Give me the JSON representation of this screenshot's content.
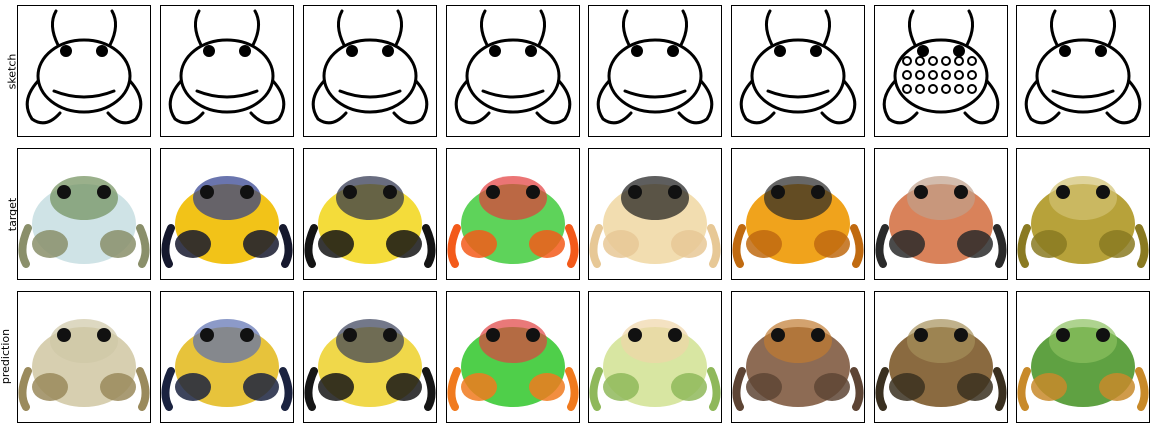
{
  "rows": [
    {
      "label": "sketch"
    },
    {
      "label": "target"
    },
    {
      "label": "prediction"
    }
  ],
  "panels": [
    {
      "col": 1,
      "target_colors": [
        "#cfe3e6",
        "#8a8f6a",
        "#6f8f5a"
      ],
      "prediction_colors": [
        "#d7cfb0",
        "#9a8a5c",
        "#cfc7a6"
      ],
      "sketch": "sitting-front"
    },
    {
      "col": 2,
      "target_colors": [
        "#f2c318",
        "#16192e",
        "#2b3a8c"
      ],
      "prediction_colors": [
        "#e7c33b",
        "#1b2340",
        "#5b6fb0"
      ],
      "sketch": "side-walking"
    },
    {
      "col": 3,
      "target_colors": [
        "#f4dc3a",
        "#141414",
        "#2a2f4a"
      ],
      "prediction_colors": [
        "#f0d84a",
        "#161616",
        "#383e58"
      ],
      "sketch": "side-closeup"
    },
    {
      "col": 4,
      "target_colors": [
        "#5ed35a",
        "#f35a1a",
        "#e23a3a"
      ],
      "prediction_colors": [
        "#4fcf4a",
        "#f07a1e",
        "#e04040"
      ],
      "sketch": "treefrog-top"
    },
    {
      "col": 5,
      "target_colors": [
        "#f2ddb0",
        "#e7c896",
        "#1a1a1a"
      ],
      "prediction_colors": [
        "#d8e6a2",
        "#8fb85a",
        "#efd6a8"
      ],
      "sketch": "treefrog-spread"
    },
    {
      "col": 6,
      "target_colors": [
        "#f0a31c",
        "#c06a10",
        "#262626"
      ],
      "prediction_colors": [
        "#8d6b54",
        "#5e4535",
        "#c07a30"
      ],
      "sketch": "round-front"
    },
    {
      "col": 7,
      "target_colors": [
        "#d9825a",
        "#2a2a2a",
        "#c0a08a"
      ],
      "prediction_colors": [
        "#8a6a40",
        "#3a3020",
        "#a5905a"
      ],
      "sketch": "spotted-round"
    },
    {
      "col": 8,
      "target_colors": [
        "#b7a23a",
        "#8a7a22",
        "#d2c272"
      ],
      "prediction_colors": [
        "#5fa142",
        "#c88a2a",
        "#8cc060"
      ],
      "sketch": "climbing"
    }
  ]
}
